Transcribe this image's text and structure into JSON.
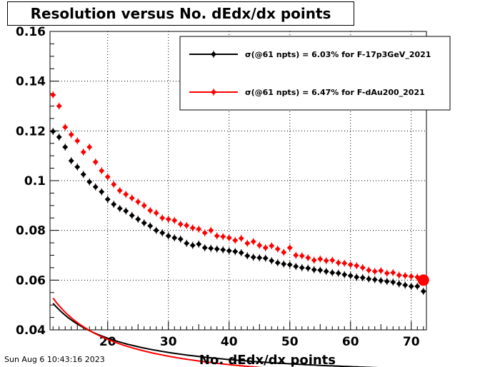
{
  "chart_data": {
    "type": "scatter",
    "title": "Resolution versus No. dEdx/dx points",
    "xlabel": "No. dEdx/dx points",
    "ylabel": "",
    "xlim": [
      10.5,
      72.5
    ],
    "ylim": [
      0.04,
      0.16
    ],
    "xticks": [
      20,
      30,
      40,
      50,
      60,
      70
    ],
    "yticks": [
      0.04,
      0.06,
      0.08,
      0.1,
      0.12,
      0.14,
      0.16
    ],
    "grid": true,
    "legend_position": "top-right",
    "series": [
      {
        "name": "σ(@61 npts) =  6.03% for F-17p3GeV_2021",
        "color": "#000000",
        "x": [
          11,
          12,
          13,
          14,
          15,
          16,
          17,
          18,
          19,
          20,
          21,
          22,
          23,
          24,
          25,
          26,
          27,
          28,
          29,
          30,
          31,
          32,
          33,
          34,
          35,
          36,
          37,
          38,
          39,
          40,
          41,
          42,
          43,
          44,
          45,
          46,
          47,
          48,
          49,
          50,
          51,
          52,
          53,
          54,
          55,
          56,
          57,
          58,
          59,
          60,
          61,
          62,
          63,
          64,
          65,
          66,
          67,
          68,
          69,
          70,
          71,
          72
        ],
        "y": [
          0.1198,
          0.1175,
          0.1135,
          0.108,
          0.1055,
          0.1025,
          0.0995,
          0.0975,
          0.0955,
          0.0925,
          0.0905,
          0.0888,
          0.0878,
          0.086,
          0.0845,
          0.083,
          0.0818,
          0.08,
          0.079,
          0.0778,
          0.077,
          0.0765,
          0.0748,
          0.074,
          0.0745,
          0.073,
          0.0728,
          0.0725,
          0.0722,
          0.0718,
          0.0715,
          0.071,
          0.0698,
          0.0692,
          0.069,
          0.0688,
          0.0678,
          0.067,
          0.0665,
          0.0662,
          0.0655,
          0.065,
          0.0648,
          0.0642,
          0.064,
          0.0635,
          0.063,
          0.0628,
          0.0622,
          0.0618,
          0.0612,
          0.061,
          0.0605,
          0.0602,
          0.0598,
          0.0595,
          0.0592,
          0.0585,
          0.058,
          0.0575,
          0.0575,
          0.0555
        ],
        "fit": {
          "a": 0.0195,
          "b": 0.343
        }
      },
      {
        "name": "σ(@61 npts) =  6.47% for F-dAu200_2021",
        "color": "#ff0000",
        "x": [
          11,
          12,
          13,
          14,
          15,
          16,
          17,
          18,
          19,
          20,
          21,
          22,
          23,
          24,
          25,
          26,
          27,
          28,
          29,
          30,
          31,
          32,
          33,
          34,
          35,
          36,
          37,
          38,
          39,
          40,
          41,
          42,
          43,
          44,
          45,
          46,
          47,
          48,
          49,
          50,
          51,
          52,
          53,
          54,
          55,
          56,
          57,
          58,
          59,
          60,
          61,
          62,
          63,
          64,
          65,
          66,
          67,
          68,
          69,
          70,
          71,
          72
        ],
        "y": [
          0.1345,
          0.13,
          0.1215,
          0.1185,
          0.116,
          0.1115,
          0.1135,
          0.1075,
          0.104,
          0.1015,
          0.0985,
          0.096,
          0.0945,
          0.093,
          0.0915,
          0.09,
          0.088,
          0.087,
          0.085,
          0.0845,
          0.084,
          0.0825,
          0.082,
          0.081,
          0.0805,
          0.079,
          0.08,
          0.0778,
          0.0775,
          0.077,
          0.076,
          0.0768,
          0.0748,
          0.0755,
          0.074,
          0.073,
          0.0738,
          0.0725,
          0.0712,
          0.073,
          0.07,
          0.0698,
          0.069,
          0.068,
          0.0685,
          0.0678,
          0.068,
          0.067,
          0.0668,
          0.0662,
          0.0658,
          0.065,
          0.064,
          0.0635,
          0.0638,
          0.0628,
          0.063,
          0.062,
          0.0618,
          0.0615,
          0.0612,
          0.06
        ],
        "fit": {
          "a": 0.0159,
          "b": 0.4056
        },
        "highlight_x": 72
      }
    ]
  },
  "footer": {
    "timestamp": "Sun Aug  6 10:43:16 2023"
  }
}
